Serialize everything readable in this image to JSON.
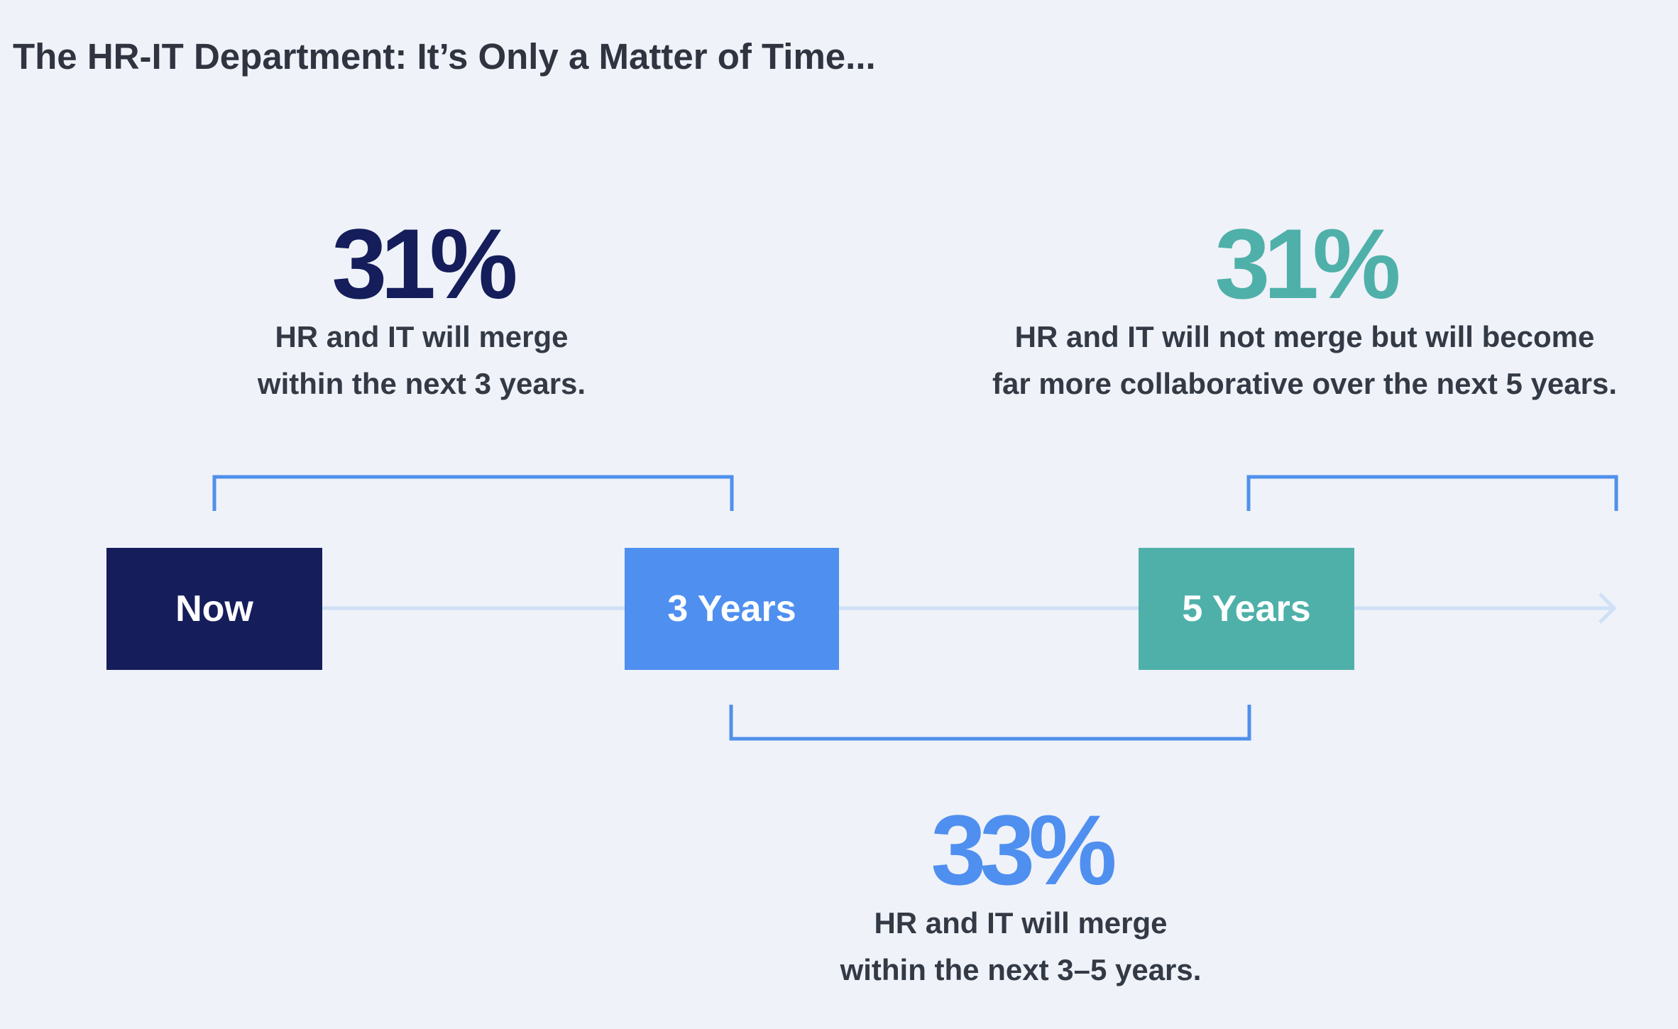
{
  "title": "The HR-IT Department: It’s Only a Matter of Time...",
  "colors": {
    "background": "#eff2f8",
    "navy": "#151d5b",
    "blue": "#4f8fef",
    "teal": "#4fb0aa",
    "bracket": "#5090ec",
    "timeline": "#cfe0f7"
  },
  "milestones": [
    {
      "label": "Now"
    },
    {
      "label": "3 Years"
    },
    {
      "label": "5 Years"
    }
  ],
  "stats": [
    {
      "percent": "31%",
      "line1": "HR and IT will merge",
      "line2": "within the next 3 years."
    },
    {
      "percent": "31%",
      "line1": "HR and IT will not merge but will become",
      "line2": "far more collaborative over the next 5 years."
    },
    {
      "percent": "33%",
      "line1": "HR and IT will merge",
      "line2": "within the next 3–5 years."
    }
  ]
}
